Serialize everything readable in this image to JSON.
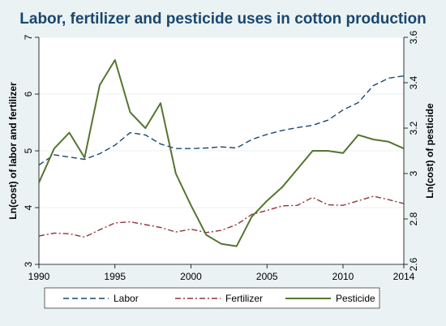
{
  "chart_data": {
    "type": "line",
    "title": "Labor, fertilizer and pesticide uses in cotton production",
    "xlabel": "",
    "ylabel_left": "Ln(cost) of labor and fertilizer",
    "ylabel_right": "Ln(cost) of pesticide",
    "xlim": [
      1990,
      2014
    ],
    "ylim_left": [
      3,
      7
    ],
    "ylim_right": [
      2.6,
      3.6
    ],
    "x_ticks": [
      {
        "value": 1990,
        "label": "1990"
      },
      {
        "value": 1995,
        "label": "1995"
      },
      {
        "value": 2000,
        "label": "2000"
      },
      {
        "value": 2005,
        "label": "2005"
      },
      {
        "value": 2010,
        "label": "2010"
      },
      {
        "value": 2014,
        "label": "2014"
      }
    ],
    "y_ticks_left": [
      {
        "value": 3,
        "label": "3"
      },
      {
        "value": 4,
        "label": "4"
      },
      {
        "value": 5,
        "label": "5"
      },
      {
        "value": 6,
        "label": "6"
      },
      {
        "value": 7,
        "label": "7"
      }
    ],
    "y_ticks_right": [
      {
        "value": 2.6,
        "label": "2.6"
      },
      {
        "value": 2.8,
        "label": "2.8"
      },
      {
        "value": 3.0,
        "label": "3"
      },
      {
        "value": 3.2,
        "label": "3.2"
      },
      {
        "value": 3.4,
        "label": "3.4"
      },
      {
        "value": 3.6,
        "label": "3.6"
      }
    ],
    "grid": "horizontal",
    "legend_position": "bottom",
    "x": [
      1990,
      1991,
      1992,
      1993,
      1994,
      1995,
      1996,
      1997,
      1998,
      1999,
      2000,
      2001,
      2002,
      2003,
      2004,
      2005,
      2006,
      2007,
      2008,
      2009,
      2010,
      2011,
      2012,
      2013,
      2014
    ],
    "series": [
      {
        "name": "Labor",
        "axis": "left",
        "color": "#1a476f",
        "dash": "dash",
        "values": [
          4.75,
          4.93,
          4.89,
          4.85,
          4.95,
          5.1,
          5.32,
          5.28,
          5.12,
          5.04,
          5.04,
          5.05,
          5.07,
          5.05,
          5.2,
          5.29,
          5.36,
          5.41,
          5.45,
          5.54,
          5.72,
          5.85,
          6.15,
          6.28,
          6.32
        ]
      },
      {
        "name": "Fertilizer",
        "axis": "left",
        "color": "#90353b",
        "dash": "dashdot",
        "values": [
          3.5,
          3.55,
          3.54,
          3.48,
          3.61,
          3.73,
          3.75,
          3.7,
          3.65,
          3.57,
          3.62,
          3.56,
          3.6,
          3.7,
          3.88,
          3.95,
          4.03,
          4.04,
          4.18,
          4.05,
          4.04,
          4.12,
          4.2,
          4.14,
          4.07
        ]
      },
      {
        "name": "Pesticide",
        "axis": "right",
        "color": "#55752f",
        "dash": "solid",
        "values": [
          2.96,
          3.11,
          3.18,
          3.07,
          3.39,
          3.5,
          3.27,
          3.2,
          3.31,
          3.0,
          2.86,
          2.73,
          2.69,
          2.68,
          2.81,
          2.88,
          2.94,
          3.02,
          3.1,
          3.1,
          3.09,
          3.17,
          3.15,
          3.14,
          3.11
        ]
      }
    ]
  }
}
